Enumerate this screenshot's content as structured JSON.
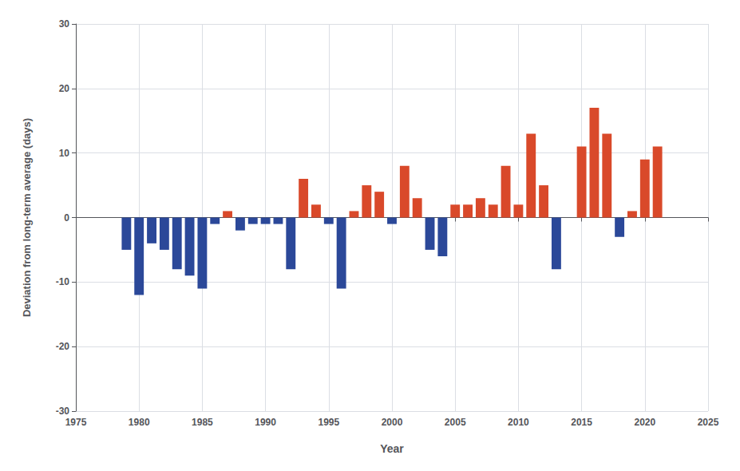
{
  "chart_data": {
    "type": "bar",
    "x_label": "Year",
    "y_label": "Deviation from long-term average (days)",
    "x": [
      1979,
      1980,
      1981,
      1982,
      1983,
      1984,
      1985,
      1986,
      1987,
      1988,
      1989,
      1990,
      1991,
      1992,
      1993,
      1994,
      1995,
      1996,
      1997,
      1998,
      1999,
      2000,
      2001,
      2002,
      2003,
      2004,
      2005,
      2006,
      2007,
      2008,
      2009,
      2010,
      2011,
      2012,
      2013,
      2014,
      2015,
      2016,
      2017,
      2018,
      2019,
      2020,
      2021
    ],
    "values": [
      -5,
      -12,
      -4,
      -5,
      -8,
      -9,
      -11,
      -1,
      1,
      -2,
      -1,
      -1,
      -1,
      -8,
      6,
      2,
      -1,
      -11,
      1,
      5,
      4,
      -1,
      8,
      3,
      -5,
      -6,
      2,
      2,
      3,
      2,
      8,
      2,
      13,
      5,
      -8,
      0,
      11,
      17,
      13,
      -3,
      1,
      9,
      11
    ],
    "colors": [
      "#2b4899",
      "#2b4899",
      "#2b4899",
      "#2b4899",
      "#2b4899",
      "#2b4899",
      "#2b4899",
      "#2b4899",
      "#d9492a",
      "#2b4899",
      "#2b4899",
      "#2b4899",
      "#2b4899",
      "#2b4899",
      "#d9492a",
      "#d9492a",
      "#2b4899",
      "#2b4899",
      "#d9492a",
      "#d9492a",
      "#d9492a",
      "#2b4899",
      "#d9492a",
      "#d9492a",
      "#2b4899",
      "#2b4899",
      "#d9492a",
      "#d9492a",
      "#d9492a",
      "#d9492a",
      "#d9492a",
      "#d9492a",
      "#d9492a",
      "#d9492a",
      "#2b4899",
      "#d9492a",
      "#d9492a",
      "#d9492a",
      "#d9492a",
      "#2b4899",
      "#d9492a",
      "#d9492a",
      "#d9492a"
    ],
    "xlim": [
      1975,
      2025
    ],
    "xticks": [
      1975,
      1980,
      1985,
      1990,
      1995,
      2000,
      2005,
      2010,
      2015,
      2020,
      2025
    ],
    "ylim": [
      -30,
      30
    ],
    "yticks": [
      -30,
      -20,
      -10,
      0,
      10,
      20,
      30
    ],
    "grid": true
  }
}
